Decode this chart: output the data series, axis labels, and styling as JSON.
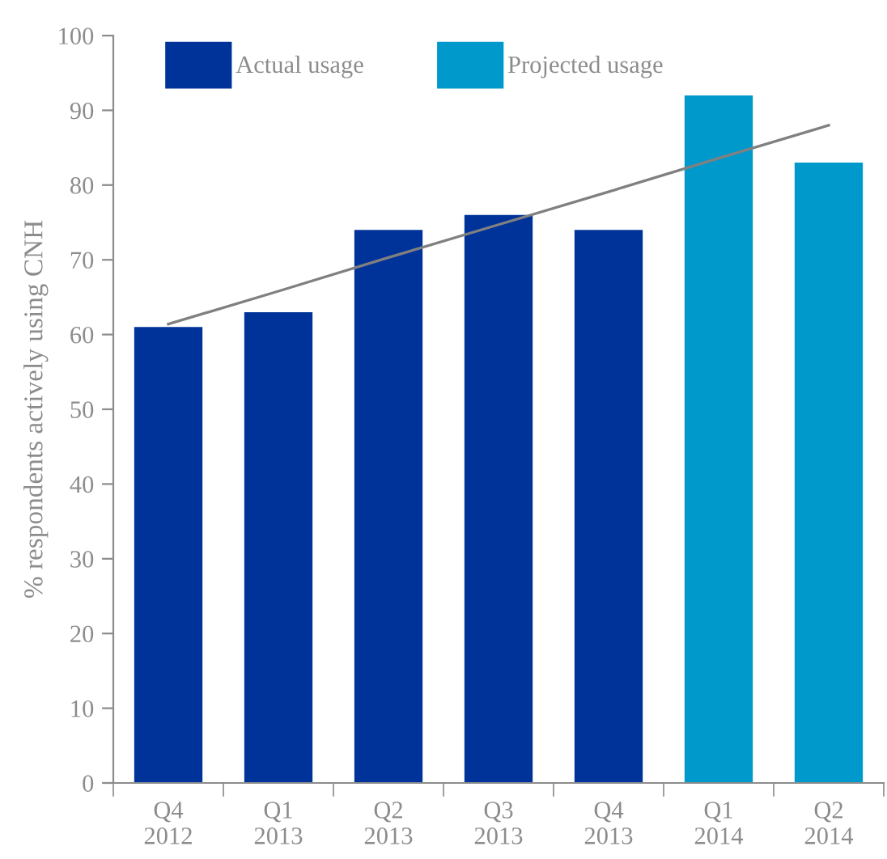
{
  "chart_data": {
    "type": "bar",
    "ylabel": "% respondents actively using CNH",
    "categories": [
      "Q4\n2012",
      "Q1\n2013",
      "Q2\n2013",
      "Q3\n2013",
      "Q4\n2013",
      "Q1\n2014",
      "Q2\n2014"
    ],
    "series": [
      {
        "name": "Actual usage",
        "color": "#003399",
        "values": [
          61,
          63,
          74,
          76,
          74,
          null,
          null
        ]
      },
      {
        "name": "Projected usage",
        "color": "#0099cc",
        "values": [
          null,
          null,
          null,
          null,
          null,
          92,
          83
        ]
      },
      {
        "type": "line",
        "color": "#808080",
        "values": [
          61.4,
          65.8,
          70.3,
          74.7,
          79.1,
          83.6,
          88.0
        ]
      }
    ],
    "ylim": [
      0,
      100
    ],
    "yticks": [
      0,
      10,
      20,
      30,
      40,
      50,
      60,
      70,
      80,
      90,
      100
    ],
    "grid": false,
    "legend": "top left",
    "marker": "none",
    "line_style": "solid"
  }
}
